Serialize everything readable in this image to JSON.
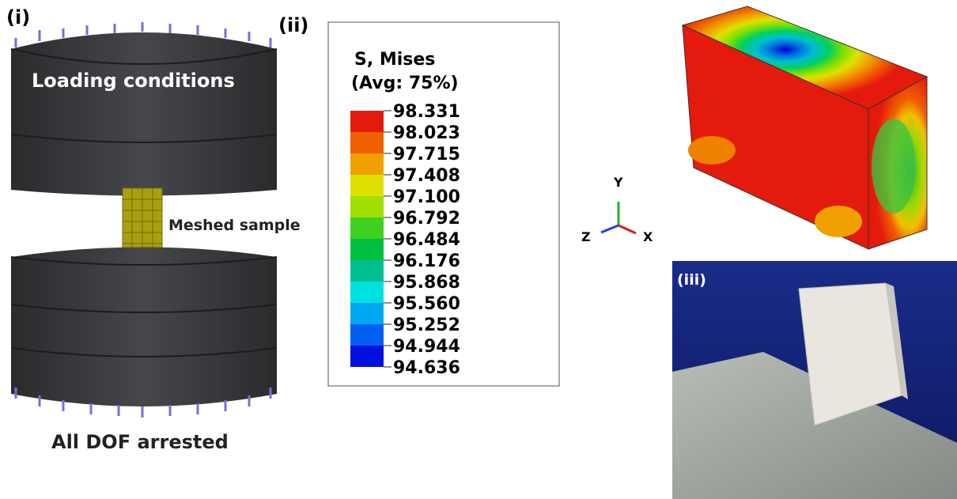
{
  "panels": {
    "i": {
      "label": "(i)",
      "loading": "Loading conditions",
      "sample": "Meshed sample",
      "fixed": "All DOF arrested"
    },
    "ii": {
      "label": "(ii)",
      "title": "S, Mises",
      "subtitle": "(Avg: 75%)",
      "levels": [
        "98.331",
        "98.023",
        "97.715",
        "97.408",
        "97.100",
        "96.792",
        "96.484",
        "96.176",
        "95.868",
        "95.560",
        "95.252",
        "94.944",
        "94.636"
      ],
      "axes": {
        "y": "Y",
        "z": "Z",
        "x": "X"
      }
    },
    "iii": {
      "label": "(iii)"
    }
  }
}
